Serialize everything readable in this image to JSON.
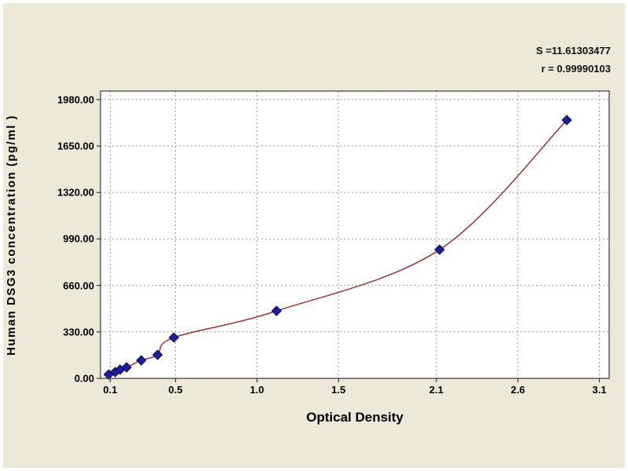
{
  "window": {
    "background": "#ffffff",
    "panel_background": "#ece9d8"
  },
  "chart_data": {
    "type": "scatter",
    "title": "",
    "xlabel": "Optical Density",
    "ylabel": "Human DSG3 concentration (pg/ml )",
    "stats": {
      "s_label": "S =11.61303477",
      "r_label": "r = 0.99990103"
    },
    "xlim": [
      0.04,
      3.16
    ],
    "ylim": [
      0,
      2040
    ],
    "x_tick_values": [
      0.1,
      0.5,
      1.0,
      1.5,
      2.1,
      2.6,
      3.1
    ],
    "x_tick_labels": [
      "0.1",
      "0.5",
      "1.0",
      "1.5",
      "2.1",
      "2.6",
      "3.1"
    ],
    "y_tick_values": [
      0,
      330,
      660,
      990,
      1320,
      1650,
      1980
    ],
    "y_tick_labels": [
      "0.00",
      "330.00",
      "660.00",
      "990.00",
      "1320.00",
      "1650.00",
      "1980.00"
    ],
    "grid": true,
    "legend": "none",
    "series": [
      {
        "name": "standard-points",
        "type": "scatter",
        "marker": "diamond",
        "color": "#1d1d9e",
        "edge_color": "#0c0c55",
        "points": [
          [
            0.09,
            27
          ],
          [
            0.13,
            45
          ],
          [
            0.16,
            62
          ],
          [
            0.2,
            78
          ],
          [
            0.29,
            128
          ],
          [
            0.39,
            167
          ],
          [
            0.49,
            290
          ],
          [
            1.12,
            479
          ],
          [
            2.12,
            914
          ],
          [
            2.9,
            1834
          ]
        ]
      },
      {
        "name": "fitted-curve",
        "type": "line",
        "color": "#8c2a2a",
        "uses_points_of": "standard-points"
      }
    ],
    "colors": {
      "plot_bg": "#ffffff",
      "grid": "#9a9a9a",
      "axis": "#3a3a3a",
      "text": "#000000"
    }
  }
}
